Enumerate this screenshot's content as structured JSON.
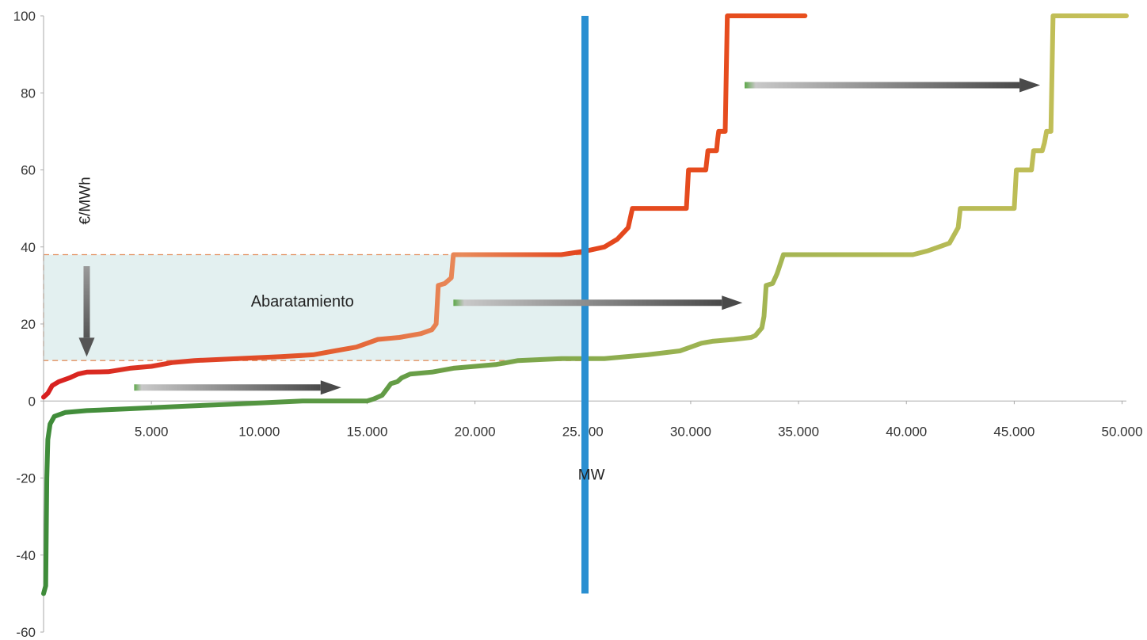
{
  "chart_data": {
    "type": "line",
    "title": "",
    "xlabel": "MW",
    "ylabel": "€/MWh",
    "xlim": [
      0,
      50200
    ],
    "ylim": [
      -60,
      100
    ],
    "x_ticks": [
      5000,
      10000,
      15000,
      20000,
      25000,
      30000,
      35000,
      40000,
      45000,
      50000
    ],
    "x_tick_labels": [
      "5.000",
      "10.000",
      "15.000",
      "20.000",
      "25.000",
      "30.000",
      "35.000",
      "40.000",
      "45.000",
      "50.000"
    ],
    "y_ticks": [
      100,
      80,
      60,
      40,
      20,
      0,
      -20,
      -40,
      -60
    ],
    "y_tick_labels": [
      "100",
      "80",
      "60",
      "40",
      "20",
      "0",
      "-20",
      "-40",
      "-60"
    ],
    "grid": false,
    "legend": "none",
    "series": [
      {
        "color_start": "#d81f1f",
        "color_end": "#e8501e",
        "points": [
          [
            0,
            1
          ],
          [
            200,
            2
          ],
          [
            400,
            4
          ],
          [
            700,
            5
          ],
          [
            1200,
            6
          ],
          [
            1600,
            7
          ],
          [
            2000,
            7.5
          ],
          [
            3000,
            7.6
          ],
          [
            4000,
            8.5
          ],
          [
            5000,
            9
          ],
          [
            6000,
            10
          ],
          [
            7000,
            10.5
          ],
          [
            9000,
            11
          ],
          [
            11000,
            11.5
          ],
          [
            12500,
            12
          ],
          [
            13500,
            13
          ],
          [
            14500,
            14
          ],
          [
            15500,
            16
          ],
          [
            16500,
            16.5
          ],
          [
            17500,
            17.5
          ],
          [
            18000,
            18.5
          ],
          [
            18200,
            20
          ],
          [
            18300,
            30
          ],
          [
            18600,
            30.5
          ],
          [
            18900,
            32
          ],
          [
            19000,
            38
          ],
          [
            22000,
            38
          ],
          [
            24000,
            38
          ],
          [
            25200,
            39
          ],
          [
            26000,
            40
          ],
          [
            26600,
            42
          ],
          [
            27100,
            45
          ],
          [
            27300,
            50
          ],
          [
            28000,
            50
          ],
          [
            29400,
            50
          ],
          [
            29800,
            50
          ],
          [
            29900,
            60
          ],
          [
            30700,
            60
          ],
          [
            30800,
            65
          ],
          [
            31200,
            65
          ],
          [
            31250,
            68
          ],
          [
            31300,
            70
          ],
          [
            31600,
            70
          ],
          [
            31700,
            100
          ],
          [
            35300,
            100
          ]
        ]
      },
      {
        "color_start": "#3f8c3a",
        "color_end": "#b8bd4a",
        "points": [
          [
            0,
            -50
          ],
          [
            100,
            -48
          ],
          [
            150,
            -20
          ],
          [
            200,
            -10
          ],
          [
            300,
            -6
          ],
          [
            500,
            -4
          ],
          [
            1000,
            -3
          ],
          [
            2000,
            -2.5
          ],
          [
            4000,
            -2
          ],
          [
            6000,
            -1.5
          ],
          [
            8000,
            -1
          ],
          [
            10000,
            -0.5
          ],
          [
            12000,
            0
          ],
          [
            14000,
            0
          ],
          [
            15000,
            0
          ],
          [
            15300,
            0.5
          ],
          [
            15700,
            1.5
          ],
          [
            15900,
            3
          ],
          [
            16100,
            4.5
          ],
          [
            16400,
            5
          ],
          [
            16600,
            6
          ],
          [
            17000,
            7
          ],
          [
            18000,
            7.5
          ],
          [
            19000,
            8.5
          ],
          [
            21000,
            9.5
          ],
          [
            22000,
            10.5
          ],
          [
            24000,
            11
          ],
          [
            26000,
            11
          ],
          [
            28000,
            12
          ],
          [
            29500,
            13
          ],
          [
            30000,
            14
          ],
          [
            30500,
            15
          ],
          [
            31000,
            15.5
          ],
          [
            32000,
            16
          ],
          [
            32800,
            16.5
          ],
          [
            33000,
            17
          ],
          [
            33300,
            19
          ],
          [
            33400,
            22
          ],
          [
            33500,
            30
          ],
          [
            33800,
            30.5
          ],
          [
            34000,
            33
          ],
          [
            34300,
            38
          ],
          [
            36000,
            38
          ],
          [
            38000,
            38
          ],
          [
            40300,
            38
          ],
          [
            41000,
            39
          ],
          [
            41500,
            40
          ],
          [
            42000,
            41
          ],
          [
            42400,
            45
          ],
          [
            42500,
            50
          ],
          [
            43300,
            50
          ],
          [
            44800,
            50
          ],
          [
            45000,
            50
          ],
          [
            45100,
            60
          ],
          [
            45800,
            60
          ],
          [
            45900,
            65
          ],
          [
            46300,
            65
          ],
          [
            46400,
            67
          ],
          [
            46500,
            70
          ],
          [
            46700,
            70
          ],
          [
            46800,
            100
          ],
          [
            50200,
            100
          ]
        ]
      }
    ],
    "reference_line": {
      "x": 25100,
      "ymin": -50,
      "ymax": 100,
      "color": "#2a8fd1"
    },
    "shaded_region": {
      "x0": 0,
      "x1": 25200,
      "y0": 10.5,
      "y1": 38,
      "fill": "#e3f0f0",
      "border": "#e39060",
      "label": "Abaratamiento"
    },
    "arrows": [
      {
        "direction": "right",
        "from": [
          4200,
          3.5
        ],
        "to": [
          13800,
          3.5
        ]
      },
      {
        "direction": "right",
        "from": [
          19000,
          25.5
        ],
        "to": [
          32400,
          25.5
        ]
      },
      {
        "direction": "right",
        "from": [
          32500,
          82
        ],
        "to": [
          46200,
          82
        ]
      },
      {
        "direction": "down",
        "from": [
          2000,
          35
        ],
        "to": [
          2000,
          11.5
        ]
      }
    ]
  }
}
